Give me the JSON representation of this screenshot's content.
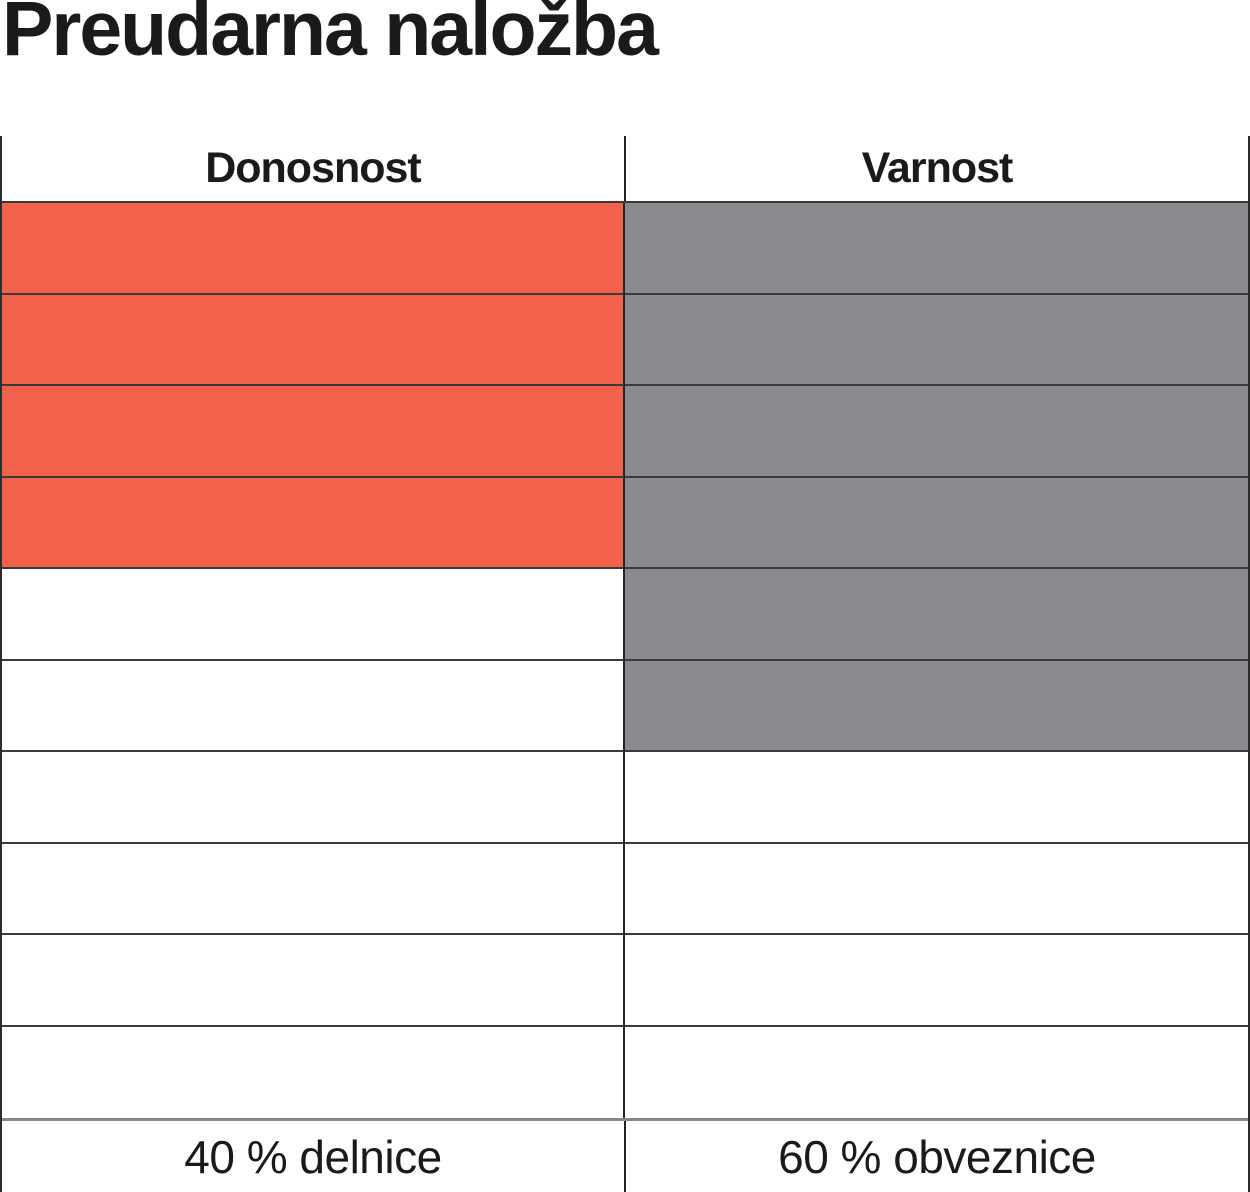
{
  "title": "Preudarna naložba",
  "chart_data": {
    "type": "table",
    "title": "Preudarna naložba",
    "rows": 10,
    "grid_on": true,
    "legend_position": "none",
    "columns": [
      {
        "header": "Donosnost",
        "filled_cells": 4,
        "total_cells": 10,
        "fill_color": "#f2624b",
        "footer": "40 % delnice"
      },
      {
        "header": "Varnost",
        "filled_cells": 6,
        "total_cells": 10,
        "fill_color": "#898b8e",
        "footer": "60 % obveznice"
      }
    ],
    "colors": {
      "donosnost_fill": "#f2624b",
      "varnost_fill": "#898b8e",
      "grid_line": "#3a3a3a",
      "footer_divider_line": "#85878a",
      "text": "#1a1a18"
    }
  }
}
